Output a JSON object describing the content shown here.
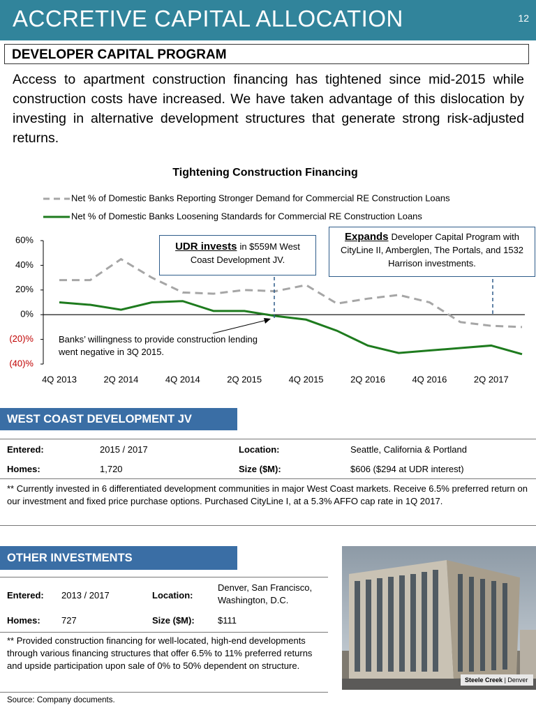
{
  "header": {
    "title": "ACCRETIVE CAPITAL ALLOCATION",
    "page_number": "12"
  },
  "section": {
    "title": "DEVELOPER CAPITAL PROGRAM",
    "body": "Access to apartment construction financing has tightened since mid-2015 while construction costs have increased. We have taken advantage of this dislocation by investing in alternative development structures that generate strong risk-adjusted returns."
  },
  "chart_data": {
    "type": "line",
    "title": "Tightening Construction  Financing",
    "categories": [
      "4Q 2013",
      null,
      "2Q 2014",
      null,
      "4Q 2014",
      null,
      "2Q 2015",
      null,
      "4Q 2015",
      null,
      "2Q 2016",
      null,
      "4Q 2016",
      null,
      "2Q 2017",
      null
    ],
    "series": [
      {
        "name": "Net % of Domestic Banks Reporting Stronger Demand for Commercial RE Construction Loans",
        "color": "#a6a6a6",
        "dashed": true,
        "values": [
          28,
          28,
          45,
          30,
          18,
          17,
          20,
          19,
          24,
          9,
          13,
          16,
          10,
          -6,
          -9,
          -10
        ]
      },
      {
        "name": "Net % of Domestic Banks Loosening Standards for Commercial RE Construction Loans",
        "color": "#1e7b1e",
        "dashed": false,
        "values": [
          10,
          8,
          4,
          10,
          11,
          3,
          3,
          -1,
          -4,
          -13,
          -25,
          -31,
          -29,
          -27,
          -25,
          -32
        ]
      }
    ],
    "ylim": [
      -40,
      60
    ],
    "yticks": [
      {
        "value": 60,
        "label": "60%"
      },
      {
        "value": 40,
        "label": "40%"
      },
      {
        "value": 20,
        "label": "20%"
      },
      {
        "value": 0,
        "label": "0%"
      },
      {
        "value": -20,
        "label": "(20)%"
      },
      {
        "value": -40,
        "label": "(40)%"
      }
    ],
    "annotations": [
      {
        "bold": "UDR invests",
        "text": "in $559M West Coast Development JV."
      },
      {
        "bold": "Expands",
        "text": "Developer Capital Program with CityLine II, Amberglen, The Portals, and 1532 Harrison investments."
      },
      {
        "text": "Banks’ willingness to provide construction lending went negative in 3Q 2015."
      }
    ]
  },
  "west_coast": {
    "title": "WEST COAST DEVELOPMENT  JV",
    "rows": [
      [
        "Entered:",
        "2015 / 2017",
        "Location:",
        "Seattle, California & Portland"
      ],
      [
        "Homes:",
        "1,720",
        "Size ($M):",
        "$606 ($294 at UDR interest)"
      ]
    ],
    "note": "** Currently invested in 6 differentiated development  communities in major West Coast markets.  Receive 6.5% preferred return on our investment and fixed price purchase options.  Purchased CityLine I, at a 5.3% AFFO cap rate in 1Q 2017."
  },
  "other": {
    "title": "OTHER INVESTMENTS",
    "rows": [
      [
        "Entered:",
        "2013 / 2017",
        "Location:",
        "Denver, San Francisco, Washington, D.C."
      ],
      [
        "Homes:",
        "727",
        "Size ($M):",
        "$111"
      ]
    ],
    "note": "** Provided construction financing for well-located, high-end developments through various financing structures that offer 6.5% to 11% preferred returns and upside participation upon sale of 0% to 50%  dependent on structure."
  },
  "photo": {
    "caption_bold": "Steele Creek",
    "caption_rest": "| Denver"
  },
  "footer": {
    "source": "Source:  Company documents."
  }
}
